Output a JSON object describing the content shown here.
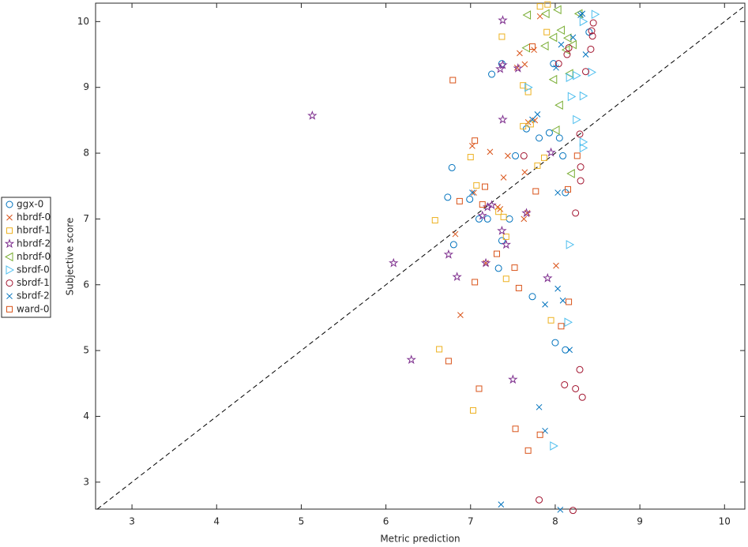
{
  "chart_data": {
    "type": "scatter",
    "x_label": "Metric prediction",
    "y_label": "Subjective score",
    "xlim": [
      2.57,
      10.24
    ],
    "ylim": [
      2.59,
      10.28
    ],
    "xticks": [
      3,
      4,
      5,
      6,
      7,
      8,
      9,
      10
    ],
    "yticks": [
      3,
      4,
      5,
      6,
      7,
      8,
      9,
      10
    ],
    "legend": "outside-left",
    "series": [
      {
        "name": "ggx-0",
        "color": "#0072BD",
        "marker": "circle",
        "x": [
          7.37,
          7.25,
          6.78,
          6.73,
          6.99,
          6.8,
          7.1,
          7.2,
          7.46,
          7.37,
          7.33,
          7.53,
          7.66,
          7.93,
          7.81,
          8.05,
          8.09,
          7.98,
          8.12,
          7.73,
          8.0,
          8.12,
          8.4
        ],
        "values": [
          9.36,
          9.2,
          7.78,
          7.33,
          7.3,
          6.61,
          7.0,
          7.0,
          7.0,
          6.67,
          6.25,
          7.96,
          8.37,
          8.31,
          8.23,
          8.23,
          7.96,
          9.36,
          7.4,
          5.82,
          5.12,
          5.01,
          9.84
        ]
      },
      {
        "name": "hbrdf-0",
        "color": "#D95319",
        "marker": "x",
        "x": [
          7.82,
          7.58,
          7.64,
          7.55,
          7.75,
          7.68,
          7.76,
          7.02,
          7.23,
          7.44,
          7.64,
          7.39,
          7.04,
          7.32,
          7.63,
          6.82,
          7.18,
          8.01,
          6.88,
          7.67,
          7.35
        ],
        "values": [
          10.08,
          9.52,
          9.35,
          9.3,
          9.57,
          8.47,
          8.5,
          8.11,
          8.02,
          7.96,
          7.71,
          7.63,
          7.4,
          7.18,
          7.0,
          6.77,
          6.33,
          6.29,
          5.54,
          7.09,
          7.15
        ]
      },
      {
        "name": "hbrdf-1",
        "color": "#EDB120",
        "marker": "square",
        "x": [
          7.91,
          7.82,
          7.37,
          7.9,
          7.62,
          7.68,
          7.71,
          7.62,
          7.87,
          7.79,
          7.0,
          7.07,
          7.33,
          7.39,
          7.42,
          6.58,
          7.42,
          7.95,
          6.63,
          7.03
        ],
        "values": [
          10.26,
          10.23,
          9.77,
          9.84,
          9.03,
          8.93,
          8.44,
          8.41,
          7.93,
          7.81,
          7.94,
          7.51,
          7.11,
          7.03,
          6.73,
          6.98,
          6.09,
          5.46,
          5.02,
          4.09
        ]
      },
      {
        "name": "hbrdf-2",
        "color": "#7E2F8E",
        "marker": "star",
        "x": [
          7.38,
          7.38,
          7.35,
          7.56,
          5.13,
          7.38,
          7.95,
          7.2,
          7.25,
          7.14,
          7.66,
          7.37,
          7.42,
          6.09,
          6.74,
          7.18,
          6.84,
          7.91,
          6.3,
          7.5
        ],
        "values": [
          10.02,
          9.34,
          9.28,
          9.29,
          8.57,
          8.51,
          8.01,
          7.18,
          7.21,
          7.05,
          7.09,
          6.82,
          6.61,
          6.33,
          6.46,
          6.33,
          6.12,
          6.1,
          4.86,
          4.56
        ]
      },
      {
        "name": "nbrdf-0",
        "color": "#77AC30",
        "marker": "triangle-left",
        "x": [
          7.67,
          7.89,
          8.03,
          8.28,
          8.07,
          7.98,
          8.15,
          7.88,
          8.13,
          7.66,
          8.21,
          7.98,
          8.17,
          8.05,
          8.01,
          8.19
        ],
        "values": [
          10.1,
          10.12,
          10.18,
          10.12,
          9.87,
          9.76,
          9.75,
          9.63,
          9.57,
          9.6,
          9.65,
          9.12,
          9.21,
          8.73,
          8.35,
          7.69
        ]
      },
      {
        "name": "sbrdf-0",
        "color": "#4DBEEE",
        "marker": "triangle-right",
        "x": [
          8.47,
          8.33,
          8.17,
          8.25,
          8.43,
          8.19,
          8.33,
          8.25,
          8.33,
          8.33,
          8.17,
          8.15,
          7.98,
          7.68
        ],
        "values": [
          10.11,
          10.0,
          9.15,
          9.18,
          9.23,
          8.86,
          8.87,
          8.51,
          8.17,
          8.08,
          6.61,
          5.43,
          3.55,
          9.0
        ]
      },
      {
        "name": "sbrdf-1",
        "color": "#A2142F",
        "marker": "circle",
        "x": [
          8.45,
          8.44,
          8.43,
          8.42,
          8.14,
          8.16,
          8.04,
          8.36,
          8.29,
          7.63,
          8.3,
          8.3,
          8.24,
          8.29,
          8.11,
          8.24,
          8.32,
          7.81,
          8.21
        ],
        "values": [
          9.98,
          9.78,
          9.86,
          9.58,
          9.5,
          9.6,
          9.36,
          9.24,
          8.29,
          7.96,
          7.79,
          7.58,
          7.09,
          4.71,
          4.48,
          4.42,
          4.29,
          2.73,
          2.57
        ]
      },
      {
        "name": "sbrdf-2",
        "color": "#0072BD",
        "marker": "x",
        "x": [
          8.32,
          8.3,
          8.21,
          8.07,
          8.36,
          8.01,
          7.79,
          7.73,
          8.03,
          7.02,
          8.03,
          8.09,
          7.88,
          8.17,
          7.81,
          7.88,
          7.36,
          8.06
        ],
        "values": [
          10.12,
          10.1,
          9.76,
          9.65,
          9.5,
          9.3,
          8.59,
          8.51,
          7.4,
          7.4,
          5.94,
          5.76,
          5.7,
          5.01,
          4.14,
          3.78,
          2.66,
          2.58
        ]
      },
      {
        "name": "ward-0",
        "color": "#D95319",
        "marker": "square",
        "x": [
          6.79,
          7.73,
          7.05,
          8.26,
          8.15,
          7.77,
          7.17,
          6.87,
          7.14,
          7.31,
          7.52,
          7.05,
          7.57,
          8.16,
          8.07,
          6.74,
          7.1,
          7.53,
          7.82,
          7.68
        ],
        "values": [
          9.11,
          9.62,
          8.19,
          7.96,
          7.45,
          7.42,
          7.49,
          7.27,
          7.22,
          6.47,
          6.26,
          6.04,
          5.95,
          5.74,
          5.37,
          4.84,
          4.42,
          3.81,
          3.72,
          3.48
        ]
      }
    ]
  }
}
